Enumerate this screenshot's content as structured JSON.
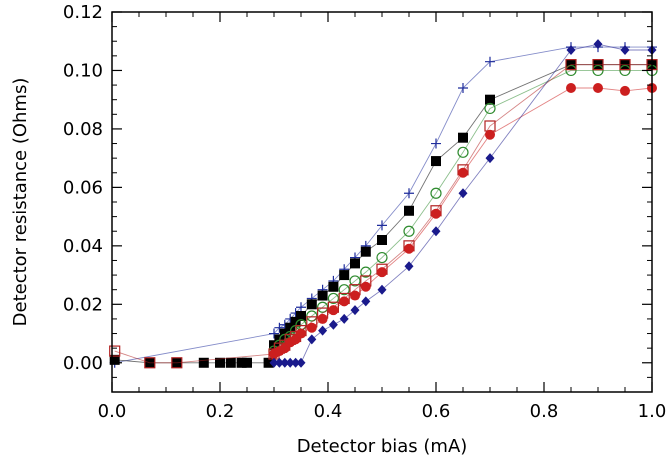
{
  "chart_data": {
    "type": "scatter",
    "title": "",
    "xlabel": "Detector bias (mA)",
    "ylabel": "Detector resistance (Ohms)",
    "xlim": [
      0.0,
      1.0
    ],
    "ylim": [
      -0.01,
      0.12
    ],
    "xticks": [
      0.0,
      0.2,
      0.4,
      0.6,
      0.8,
      1.0
    ],
    "xtick_labels": [
      "0.0",
      "0.2",
      "0.4",
      "0.6",
      "0.8",
      "1.0"
    ],
    "yticks": [
      0.0,
      0.02,
      0.04,
      0.06,
      0.08,
      0.1,
      0.12
    ],
    "ytick_labels": [
      "0.00",
      "0.02",
      "0.04",
      "0.06",
      "0.08",
      "0.10",
      "0.12"
    ],
    "grid": false,
    "legend": "none",
    "series": [
      {
        "marker": "plus",
        "color": "#1f2d9c",
        "x": [
          0.005,
          0.3,
          0.31,
          0.32,
          0.33,
          0.34,
          0.35,
          0.37,
          0.39,
          0.41,
          0.43,
          0.45,
          0.47,
          0.5,
          0.55,
          0.6,
          0.65,
          0.7,
          0.85,
          0.9,
          0.95,
          1.0
        ],
        "y": [
          0.0,
          0.01,
          0.012,
          0.013,
          0.015,
          0.017,
          0.019,
          0.022,
          0.025,
          0.028,
          0.032,
          0.036,
          0.04,
          0.047,
          0.058,
          0.075,
          0.094,
          0.103,
          0.108,
          0.108,
          0.108,
          0.108
        ]
      },
      {
        "marker": "filled-square",
        "color": "#000000",
        "x": [
          0.005,
          0.07,
          0.12,
          0.17,
          0.2,
          0.22,
          0.24,
          0.25,
          0.29,
          0.3,
          0.31,
          0.32,
          0.33,
          0.34,
          0.35,
          0.37,
          0.39,
          0.41,
          0.43,
          0.45,
          0.47,
          0.5,
          0.55,
          0.6,
          0.65,
          0.7,
          0.85,
          0.9,
          0.95,
          1.0
        ],
        "y": [
          0.001,
          0.0,
          0.0,
          0.0,
          0.0,
          0.0,
          0.0,
          0.0,
          0.0,
          0.006,
          0.008,
          0.01,
          0.012,
          0.014,
          0.016,
          0.02,
          0.023,
          0.026,
          0.03,
          0.034,
          0.038,
          0.042,
          0.052,
          0.069,
          0.077,
          0.09,
          0.102,
          0.102,
          0.102,
          0.102
        ]
      },
      {
        "marker": "open-circle",
        "color": "#2e8b2e",
        "x": [
          0.3,
          0.31,
          0.32,
          0.33,
          0.34,
          0.35,
          0.37,
          0.39,
          0.41,
          0.43,
          0.45,
          0.47,
          0.5,
          0.55,
          0.6,
          0.65,
          0.7,
          0.85,
          0.9,
          0.95,
          1.0
        ],
        "y": [
          0.004,
          0.006,
          0.008,
          0.009,
          0.011,
          0.013,
          0.016,
          0.019,
          0.022,
          0.025,
          0.028,
          0.031,
          0.036,
          0.045,
          0.058,
          0.072,
          0.087,
          0.1,
          0.1,
          0.1,
          0.1
        ]
      },
      {
        "marker": "open-square",
        "color": "#b22222",
        "x": [
          0.005,
          0.07,
          0.12,
          0.3,
          0.31,
          0.32,
          0.33,
          0.34,
          0.35,
          0.37,
          0.39,
          0.41,
          0.43,
          0.45,
          0.47,
          0.5,
          0.55,
          0.6,
          0.65,
          0.7,
          0.85,
          0.9,
          0.95,
          1.0
        ],
        "y": [
          0.004,
          0.0,
          0.0,
          0.003,
          0.005,
          0.006,
          0.008,
          0.009,
          0.011,
          0.014,
          0.017,
          0.019,
          0.022,
          0.025,
          0.028,
          0.032,
          0.04,
          0.052,
          0.066,
          0.081,
          0.102,
          0.102,
          0.102,
          0.102
        ]
      },
      {
        "marker": "filled-circle",
        "color": "#cc1f1f",
        "x": [
          0.3,
          0.31,
          0.32,
          0.33,
          0.34,
          0.35,
          0.37,
          0.39,
          0.41,
          0.43,
          0.45,
          0.47,
          0.5,
          0.55,
          0.6,
          0.65,
          0.7,
          0.85,
          0.9,
          0.95,
          1.0
        ],
        "y": [
          0.003,
          0.004,
          0.005,
          0.007,
          0.008,
          0.01,
          0.012,
          0.015,
          0.018,
          0.021,
          0.023,
          0.026,
          0.031,
          0.039,
          0.051,
          0.065,
          0.078,
          0.094,
          0.094,
          0.093,
          0.094
        ]
      },
      {
        "marker": "filled-diamond",
        "color": "#1a1a8c",
        "x": [
          0.3,
          0.31,
          0.32,
          0.33,
          0.34,
          0.35,
          0.37,
          0.39,
          0.41,
          0.43,
          0.45,
          0.47,
          0.5,
          0.55,
          0.6,
          0.65,
          0.7,
          0.85,
          0.9,
          0.95,
          1.0
        ],
        "y": [
          0.0,
          0.0,
          0.0,
          0.0,
          0.0,
          0.0,
          0.008,
          0.011,
          0.013,
          0.015,
          0.018,
          0.021,
          0.025,
          0.033,
          0.045,
          0.058,
          0.07,
          0.107,
          0.109,
          0.107,
          0.107
        ]
      }
    ]
  }
}
